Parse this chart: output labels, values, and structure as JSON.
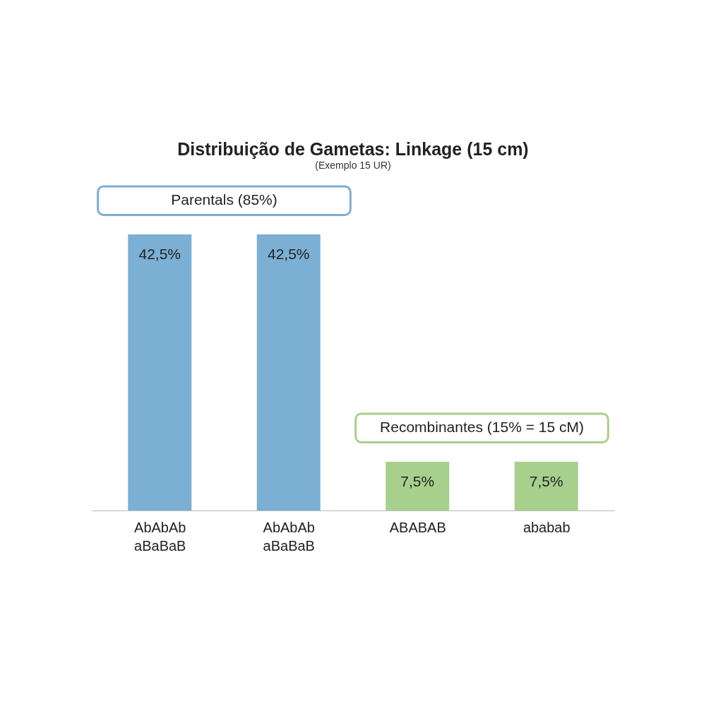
{
  "chart_data": {
    "type": "bar",
    "title": "Distribuição de Gametas: Linkage (15 cm)",
    "subtitle": "(Exemplo 15 UR)",
    "categories": [
      "AbAbAb\naBaBaB",
      "AbAbAb\naBaBaB",
      "ABABAB",
      "ababab"
    ],
    "values": [
      42.5,
      42.5,
      7.5,
      7.5
    ],
    "colors": [
      "#7bafd4",
      "#7bafd4",
      "#a8d08d",
      "#a8d08d"
    ],
    "value_labels": [
      "42,5%",
      "42,5%",
      "7,5%",
      "7,5%"
    ],
    "annotations": [
      "Parentals (85%)",
      "Recombinantes (15% = 15 cM)"
    ],
    "ylim": [
      0,
      50
    ],
    "grid": false
  }
}
